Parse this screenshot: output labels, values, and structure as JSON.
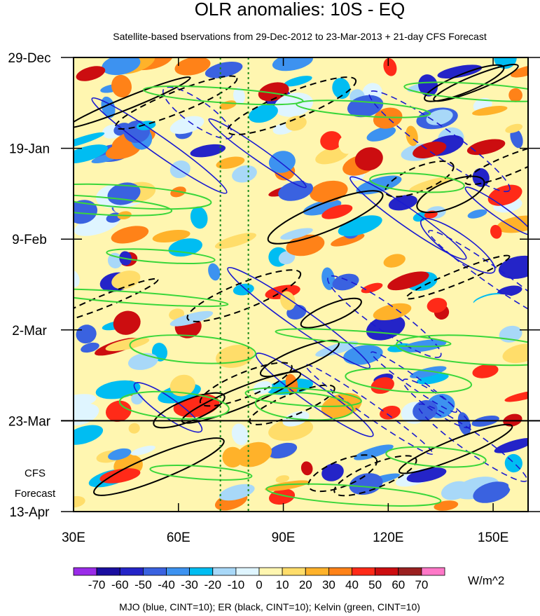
{
  "chart_data": {
    "type": "heatmap",
    "title": "OLR anomalies: 10S - EQ",
    "subtitle": "Satellite-based bservations from 29-Dec-2012 to 23-Mar-2013 + 21-day CFS Forecast",
    "x_ticks": [
      {
        "lon": 30,
        "label": "30E"
      },
      {
        "lon": 60,
        "label": "60E"
      },
      {
        "lon": 90,
        "label": "90E"
      },
      {
        "lon": 120,
        "label": "120E"
      },
      {
        "lon": 150,
        "label": "150E"
      }
    ],
    "xlim": [
      30,
      160
    ],
    "y_ticks": [
      {
        "day": 0,
        "label": "29-Dec"
      },
      {
        "day": 21,
        "label": "19-Jan"
      },
      {
        "day": 42,
        "label": "9-Feb"
      },
      {
        "day": 63,
        "label": "2-Mar"
      },
      {
        "day": 84,
        "label": "23-Mar"
      },
      {
        "day": 105,
        "label": "13-Apr"
      }
    ],
    "ylim": [
      0,
      105
    ],
    "forecast_divider_day": 84,
    "forecast_label": [
      "CFS",
      "Forecast"
    ],
    "vertical_reference_lines_lon": [
      72,
      80
    ],
    "colorbar": {
      "levels": [
        -70,
        -60,
        -50,
        -40,
        -30,
        -20,
        -10,
        0,
        10,
        20,
        30,
        40,
        50,
        60,
        70
      ],
      "labels": [
        "-70",
        "-60",
        "-50",
        "-40",
        "-30",
        "-20",
        "-10",
        "0",
        "10",
        "20",
        "30",
        "40",
        "50",
        "60",
        "70"
      ],
      "colors": [
        "#9a2be8",
        "#1a0ea0",
        "#2424c8",
        "#3a62e0",
        "#3d92f0",
        "#00bdf2",
        "#a8d8f8",
        "#dff5ff",
        "#fff6b0",
        "#ffdd6a",
        "#ffb22a",
        "#ff8218",
        "#ff2a18",
        "#cc0d10",
        "#9a2020",
        "#ff78c8"
      ],
      "units": "W/m^2"
    },
    "footnote": "MJO (blue, CINT=10); ER (black, CINT=10); Kelvin (green, CINT=10)",
    "overlays": [
      {
        "name": "MJO",
        "color": "#1a1ad0"
      },
      {
        "name": "ER",
        "color": "#000000"
      },
      {
        "name": "Kelvin",
        "color": "#3ad63a"
      }
    ]
  }
}
